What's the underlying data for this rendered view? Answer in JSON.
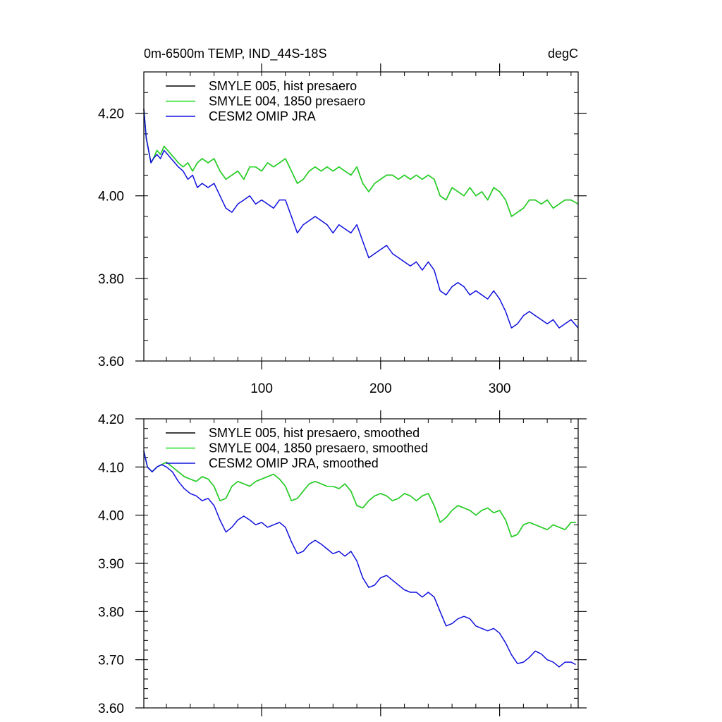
{
  "chart_data": [
    {
      "type": "line",
      "title": "0m-6500m TEMP, IND_44S-18S",
      "units": "degC",
      "xlabel": "",
      "ylabel": "",
      "xlim": [
        1,
        366
      ],
      "ylim": [
        3.6,
        4.3
      ],
      "xticks": [
        100,
        200,
        300
      ],
      "xtick_labels": [
        "100",
        "200",
        "300"
      ],
      "yticks": [
        3.6,
        3.8,
        4.0,
        4.2
      ],
      "ytick_labels": [
        "3.60",
        "3.80",
        "4.00",
        "4.20"
      ],
      "legend": "top-left",
      "series": [
        {
          "name": "SMYLE 005, hist presaero",
          "color": "#000000",
          "x": [
            1,
            3,
            5,
            7,
            9,
            12,
            15,
            18,
            21,
            24,
            27,
            30,
            34,
            38,
            42,
            46,
            50,
            55,
            60,
            65,
            70,
            75,
            80,
            85,
            90,
            95,
            100,
            105,
            110,
            115,
            120,
            125,
            130,
            135,
            140,
            145,
            150,
            155,
            160,
            165,
            170,
            175,
            180,
            185,
            190,
            195,
            200,
            205,
            210,
            215,
            220,
            225,
            230,
            235,
            240,
            245,
            250,
            255,
            260,
            265,
            270,
            275,
            280,
            285,
            290,
            295,
            300,
            305,
            310,
            315,
            320,
            325,
            330,
            335,
            340,
            345,
            350,
            355,
            360,
            366
          ],
          "values": [
            4.21,
            4.14,
            4.11,
            4.08,
            4.09,
            4.11,
            4.1,
            4.12,
            4.11,
            4.1,
            4.09,
            4.08,
            4.07,
            4.08,
            4.06,
            4.08,
            4.09,
            4.08,
            4.09,
            4.06,
            4.04,
            4.05,
            4.06,
            4.04,
            4.07,
            4.07,
            4.06,
            4.08,
            4.07,
            4.08,
            4.09,
            4.06,
            4.03,
            4.04,
            4.06,
            4.07,
            4.06,
            4.07,
            4.06,
            4.07,
            4.06,
            4.05,
            4.07,
            4.03,
            4.01,
            4.03,
            4.04,
            4.05,
            4.05,
            4.04,
            4.05,
            4.04,
            4.05,
            4.04,
            4.05,
            4.04,
            4.0,
            3.99,
            4.02,
            4.01,
            4.0,
            4.02,
            4.0,
            4.01,
            3.99,
            4.02,
            4.01,
            3.99,
            3.95,
            3.96,
            3.97,
            3.99,
            3.99,
            3.98,
            3.99,
            3.97,
            3.98,
            3.99,
            3.99,
            3.98
          ]
        },
        {
          "name": "SMYLE 004, 1850 presaero",
          "color": "#22dd22",
          "x": [
            1,
            3,
            5,
            7,
            9,
            12,
            15,
            18,
            21,
            24,
            27,
            30,
            34,
            38,
            42,
            46,
            50,
            55,
            60,
            65,
            70,
            75,
            80,
            85,
            90,
            95,
            100,
            105,
            110,
            115,
            120,
            125,
            130,
            135,
            140,
            145,
            150,
            155,
            160,
            165,
            170,
            175,
            180,
            185,
            190,
            195,
            200,
            205,
            210,
            215,
            220,
            225,
            230,
            235,
            240,
            245,
            250,
            255,
            260,
            265,
            270,
            275,
            280,
            285,
            290,
            295,
            300,
            305,
            310,
            315,
            320,
            325,
            330,
            335,
            340,
            345,
            350,
            355,
            360,
            366
          ],
          "values": [
            4.21,
            4.14,
            4.11,
            4.08,
            4.09,
            4.11,
            4.1,
            4.12,
            4.11,
            4.1,
            4.09,
            4.08,
            4.07,
            4.08,
            4.06,
            4.08,
            4.09,
            4.08,
            4.09,
            4.06,
            4.04,
            4.05,
            4.06,
            4.04,
            4.07,
            4.07,
            4.06,
            4.08,
            4.07,
            4.08,
            4.09,
            4.06,
            4.03,
            4.04,
            4.06,
            4.07,
            4.06,
            4.07,
            4.06,
            4.07,
            4.06,
            4.05,
            4.07,
            4.03,
            4.01,
            4.03,
            4.04,
            4.05,
            4.05,
            4.04,
            4.05,
            4.04,
            4.05,
            4.04,
            4.05,
            4.04,
            4.0,
            3.99,
            4.02,
            4.01,
            4.0,
            4.02,
            4.0,
            4.01,
            3.99,
            4.02,
            4.01,
            3.99,
            3.95,
            3.96,
            3.97,
            3.99,
            3.99,
            3.98,
            3.99,
            3.97,
            3.98,
            3.99,
            3.99,
            3.98
          ]
        },
        {
          "name": "CESM2 OMIP JRA",
          "color": "#1010dd",
          "x": [
            1,
            3,
            5,
            7,
            9,
            12,
            15,
            18,
            21,
            24,
            27,
            30,
            34,
            38,
            42,
            46,
            50,
            55,
            60,
            65,
            70,
            75,
            80,
            85,
            90,
            95,
            100,
            105,
            110,
            115,
            120,
            125,
            130,
            135,
            140,
            145,
            150,
            155,
            160,
            165,
            170,
            175,
            180,
            185,
            190,
            195,
            200,
            205,
            210,
            215,
            220,
            225,
            230,
            235,
            240,
            245,
            250,
            255,
            260,
            265,
            270,
            275,
            280,
            285,
            290,
            295,
            300,
            305,
            310,
            315,
            320,
            325,
            330,
            335,
            340,
            345,
            350,
            355,
            360,
            366
          ],
          "values": [
            4.21,
            4.14,
            4.11,
            4.08,
            4.09,
            4.1,
            4.09,
            4.11,
            4.1,
            4.09,
            4.08,
            4.07,
            4.06,
            4.04,
            4.05,
            4.02,
            4.03,
            4.02,
            4.03,
            4.0,
            3.97,
            3.96,
            3.98,
            3.99,
            4.0,
            3.98,
            3.99,
            3.98,
            3.97,
            3.99,
            3.99,
            3.95,
            3.91,
            3.93,
            3.94,
            3.95,
            3.94,
            3.93,
            3.91,
            3.93,
            3.92,
            3.91,
            3.93,
            3.89,
            3.85,
            3.86,
            3.87,
            3.88,
            3.86,
            3.85,
            3.84,
            3.83,
            3.84,
            3.82,
            3.84,
            3.82,
            3.77,
            3.76,
            3.78,
            3.79,
            3.78,
            3.76,
            3.77,
            3.76,
            3.75,
            3.77,
            3.75,
            3.72,
            3.68,
            3.69,
            3.71,
            3.72,
            3.71,
            3.7,
            3.69,
            3.7,
            3.68,
            3.69,
            3.7,
            3.68
          ]
        }
      ]
    },
    {
      "type": "line",
      "title": "",
      "xlabel": "",
      "ylabel": "",
      "xlim": [
        1,
        366
      ],
      "ylim": [
        3.6,
        4.2
      ],
      "xticks": [
        100,
        200,
        300
      ],
      "xtick_labels": [
        "",
        "",
        ""
      ],
      "yticks": [
        3.6,
        3.7,
        3.8,
        3.9,
        4.0,
        4.1,
        4.2
      ],
      "ytick_labels": [
        "3.60",
        "3.70",
        "3.80",
        "3.90",
        "4.00",
        "4.10",
        "4.20"
      ],
      "legend": "top-left",
      "series": [
        {
          "name": "SMYLE 005, hist presaero, smoothed",
          "color": "#000000",
          "x": [
            1,
            4,
            8,
            12,
            16,
            20,
            25,
            30,
            35,
            40,
            45,
            50,
            55,
            60,
            65,
            70,
            75,
            80,
            85,
            90,
            95,
            100,
            105,
            110,
            115,
            120,
            125,
            130,
            135,
            140,
            145,
            150,
            155,
            160,
            165,
            170,
            175,
            180,
            185,
            190,
            195,
            200,
            205,
            210,
            215,
            220,
            225,
            230,
            235,
            240,
            245,
            250,
            255,
            260,
            265,
            270,
            275,
            280,
            285,
            290,
            295,
            300,
            305,
            310,
            315,
            320,
            325,
            330,
            335,
            340,
            345,
            350,
            355,
            360,
            364
          ],
          "values": [
            4.133,
            4.1,
            4.09,
            4.1,
            4.105,
            4.11,
            4.1,
            4.09,
            4.08,
            4.075,
            4.07,
            4.08,
            4.075,
            4.06,
            4.03,
            4.035,
            4.06,
            4.07,
            4.065,
            4.06,
            4.07,
            4.075,
            4.08,
            4.085,
            4.075,
            4.06,
            4.03,
            4.035,
            4.05,
            4.065,
            4.07,
            4.065,
            4.06,
            4.06,
            4.055,
            4.065,
            4.05,
            4.02,
            4.015,
            4.03,
            4.04,
            4.045,
            4.04,
            4.03,
            4.035,
            4.045,
            4.04,
            4.03,
            4.04,
            4.045,
            4.02,
            3.985,
            3.995,
            4.01,
            4.02,
            4.015,
            4.01,
            4.0,
            4.01,
            4.015,
            4.005,
            4.01,
            3.99,
            3.955,
            3.96,
            3.98,
            3.985,
            3.98,
            3.975,
            3.97,
            3.98,
            3.975,
            3.97,
            3.985,
            3.985
          ]
        },
        {
          "name": "SMYLE 004, 1850 presaero, smoothed",
          "color": "#22dd22",
          "x": [
            1,
            4,
            8,
            12,
            16,
            20,
            25,
            30,
            35,
            40,
            45,
            50,
            55,
            60,
            65,
            70,
            75,
            80,
            85,
            90,
            95,
            100,
            105,
            110,
            115,
            120,
            125,
            130,
            135,
            140,
            145,
            150,
            155,
            160,
            165,
            170,
            175,
            180,
            185,
            190,
            195,
            200,
            205,
            210,
            215,
            220,
            225,
            230,
            235,
            240,
            245,
            250,
            255,
            260,
            265,
            270,
            275,
            280,
            285,
            290,
            295,
            300,
            305,
            310,
            315,
            320,
            325,
            330,
            335,
            340,
            345,
            350,
            355,
            360,
            364
          ],
          "values": [
            4.133,
            4.1,
            4.09,
            4.1,
            4.105,
            4.11,
            4.1,
            4.09,
            4.08,
            4.075,
            4.07,
            4.08,
            4.075,
            4.06,
            4.03,
            4.035,
            4.06,
            4.07,
            4.065,
            4.06,
            4.07,
            4.075,
            4.08,
            4.085,
            4.075,
            4.06,
            4.03,
            4.035,
            4.05,
            4.065,
            4.07,
            4.065,
            4.06,
            4.06,
            4.055,
            4.065,
            4.05,
            4.02,
            4.015,
            4.03,
            4.04,
            4.045,
            4.04,
            4.03,
            4.035,
            4.045,
            4.04,
            4.03,
            4.04,
            4.045,
            4.02,
            3.985,
            3.995,
            4.01,
            4.02,
            4.015,
            4.01,
            4.0,
            4.01,
            4.015,
            4.005,
            4.01,
            3.99,
            3.955,
            3.96,
            3.98,
            3.985,
            3.98,
            3.975,
            3.97,
            3.98,
            3.975,
            3.97,
            3.985,
            3.985
          ]
        },
        {
          "name": "CESM2 OMIP JRA, smoothed",
          "color": "#1010dd",
          "x": [
            1,
            4,
            8,
            12,
            16,
            20,
            25,
            30,
            35,
            40,
            45,
            50,
            55,
            60,
            65,
            70,
            75,
            80,
            85,
            90,
            95,
            100,
            105,
            110,
            115,
            120,
            125,
            130,
            135,
            140,
            145,
            150,
            155,
            160,
            165,
            170,
            175,
            180,
            185,
            190,
            195,
            200,
            205,
            210,
            215,
            220,
            225,
            230,
            235,
            240,
            245,
            250,
            255,
            260,
            265,
            270,
            275,
            280,
            285,
            290,
            295,
            300,
            305,
            310,
            315,
            320,
            325,
            330,
            335,
            340,
            345,
            350,
            355,
            360,
            364
          ],
          "values": [
            4.133,
            4.1,
            4.09,
            4.1,
            4.105,
            4.1,
            4.09,
            4.07,
            4.055,
            4.045,
            4.04,
            4.03,
            4.035,
            4.02,
            3.99,
            3.965,
            3.975,
            3.99,
            3.998,
            3.99,
            3.98,
            3.985,
            3.975,
            3.98,
            3.985,
            3.975,
            3.945,
            3.92,
            3.925,
            3.94,
            3.948,
            3.94,
            3.93,
            3.92,
            3.925,
            3.915,
            3.925,
            3.905,
            3.87,
            3.85,
            3.855,
            3.87,
            3.875,
            3.865,
            3.855,
            3.845,
            3.84,
            3.84,
            3.83,
            3.84,
            3.83,
            3.8,
            3.77,
            3.775,
            3.785,
            3.79,
            3.785,
            3.77,
            3.765,
            3.76,
            3.765,
            3.755,
            3.735,
            3.71,
            3.692,
            3.695,
            3.705,
            3.718,
            3.712,
            3.7,
            3.695,
            3.685,
            3.695,
            3.695,
            3.69
          ]
        }
      ]
    }
  ]
}
